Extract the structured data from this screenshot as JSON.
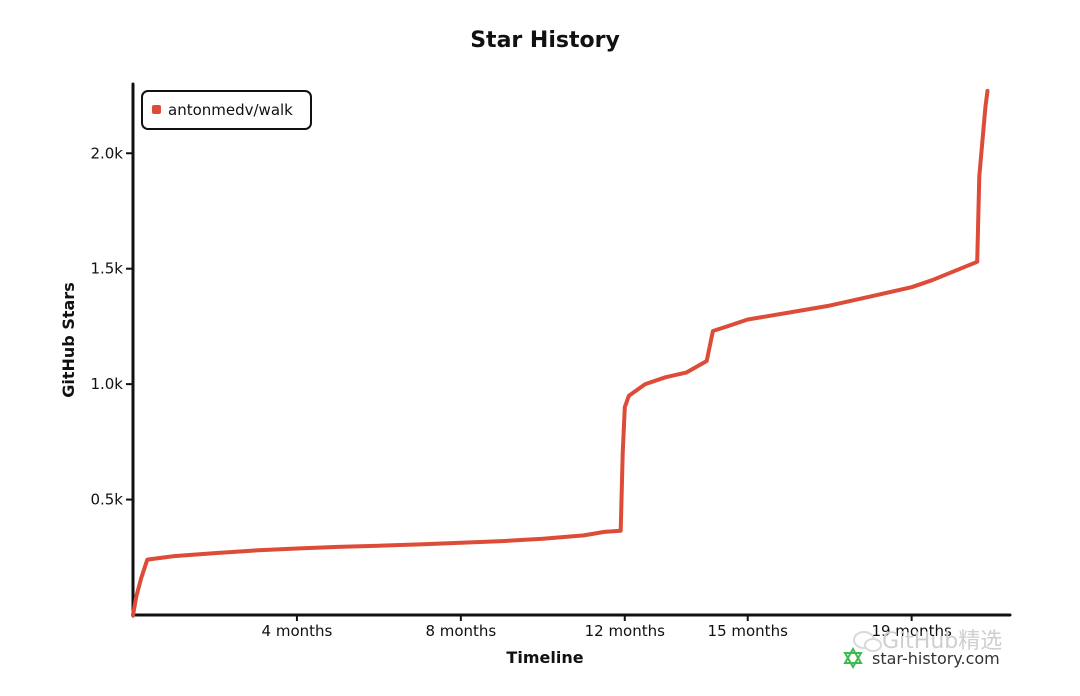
{
  "chart_data": {
    "type": "line",
    "title": "Star History",
    "xlabel": "Timeline",
    "ylabel": "GitHub Stars",
    "x_unit": "months",
    "xlim": [
      0,
      21.4
    ],
    "ylim": [
      0,
      2300
    ],
    "x_ticks": [
      {
        "value": 4,
        "label": "4 months"
      },
      {
        "value": 8,
        "label": "8 months"
      },
      {
        "value": 12,
        "label": "12 months"
      },
      {
        "value": 15,
        "label": "15 months"
      },
      {
        "value": 19,
        "label": "19 months"
      }
    ],
    "y_ticks": [
      {
        "value": 500,
        "label": "0.5k"
      },
      {
        "value": 1000,
        "label": "1.0k"
      },
      {
        "value": 1500,
        "label": "1.5k"
      },
      {
        "value": 2000,
        "label": "2.0k"
      }
    ],
    "grid": false,
    "legend_position": "top-left",
    "series": [
      {
        "name": "antonmedv/walk",
        "color": "#dd4b39",
        "points": [
          [
            0,
            0
          ],
          [
            0.08,
            80
          ],
          [
            0.2,
            160
          ],
          [
            0.35,
            240
          ],
          [
            1,
            255
          ],
          [
            2,
            268
          ],
          [
            3,
            280
          ],
          [
            4,
            288
          ],
          [
            5,
            295
          ],
          [
            6,
            300
          ],
          [
            7,
            306
          ],
          [
            8,
            313
          ],
          [
            9,
            320
          ],
          [
            10,
            330
          ],
          [
            11,
            345
          ],
          [
            11.5,
            360
          ],
          [
            11.9,
            365
          ],
          [
            11.95,
            700
          ],
          [
            12.0,
            900
          ],
          [
            12.1,
            950
          ],
          [
            12.5,
            1000
          ],
          [
            13,
            1030
          ],
          [
            13.5,
            1050
          ],
          [
            14.0,
            1100
          ],
          [
            14.15,
            1230
          ],
          [
            14.5,
            1250
          ],
          [
            15,
            1280
          ],
          [
            16,
            1310
          ],
          [
            17,
            1340
          ],
          [
            18,
            1380
          ],
          [
            19,
            1420
          ],
          [
            19.5,
            1450
          ],
          [
            20.6,
            1530
          ],
          [
            20.65,
            1900
          ],
          [
            20.8,
            2200
          ],
          [
            20.85,
            2270
          ]
        ]
      }
    ]
  },
  "brand": {
    "site": "star-history.com",
    "watermark": "GitHub精选"
  }
}
